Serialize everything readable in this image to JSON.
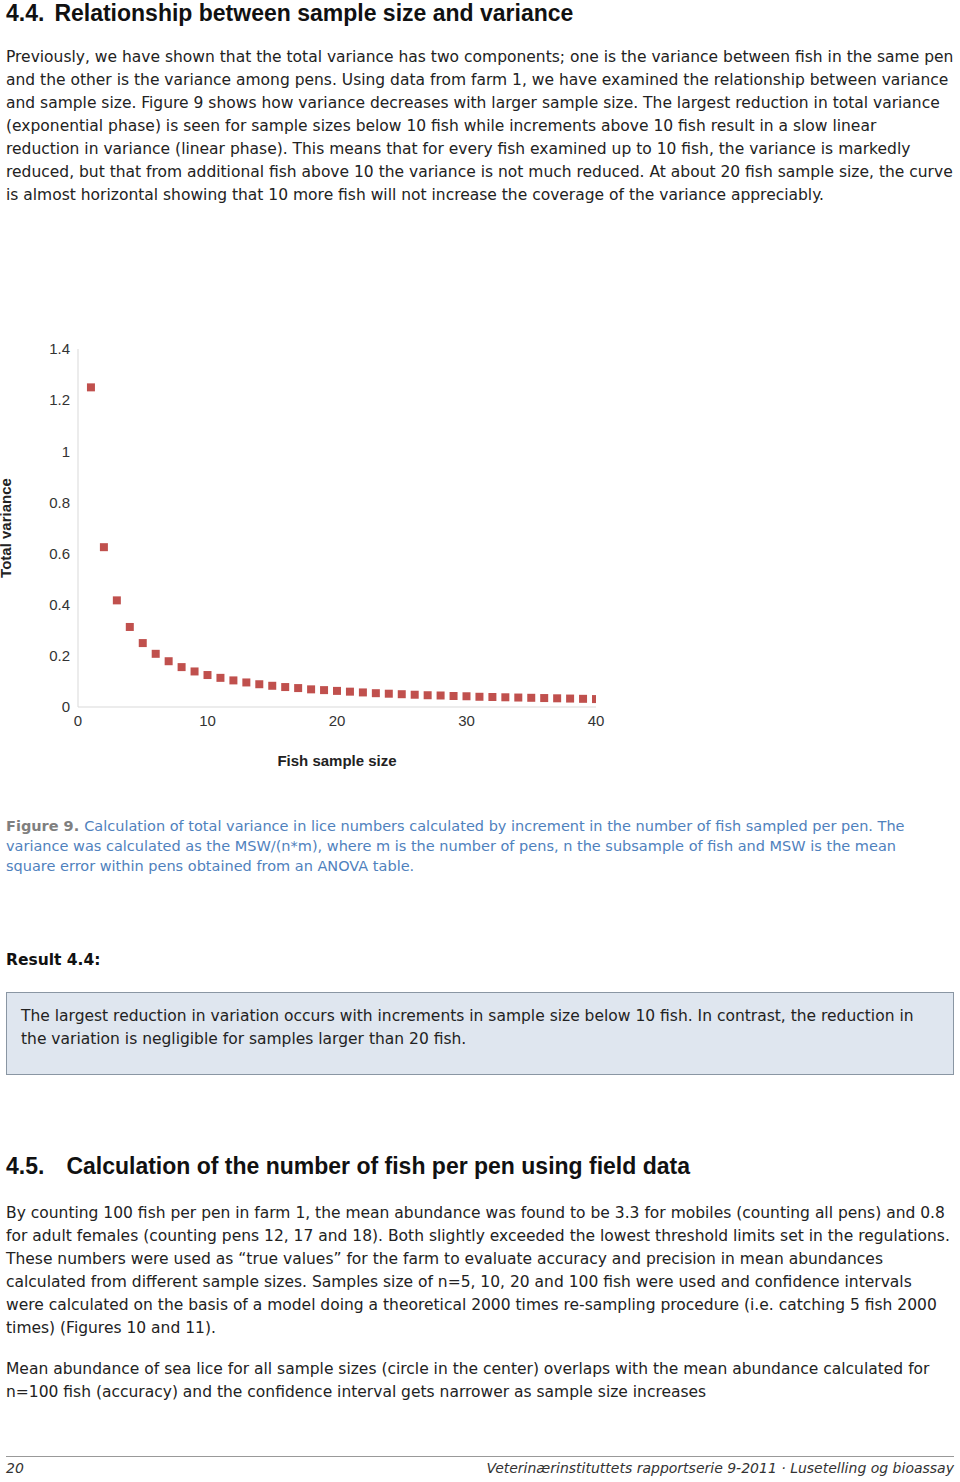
{
  "section_4_4": {
    "number": "4.4.",
    "title": "Relationship between sample size and variance",
    "paragraph": "Previously, we have shown that the total variance has two components; one is the variance between fish in the same pen and the other is the variance among pens. Using data from farm 1, we have examined the relationship between variance and sample size. Figure 9 shows how variance decreases with larger sample size. The largest reduction in total variance (exponential phase) is seen for sample sizes below 10 fish while increments above 10 fish result in a slow linear reduction in variance (linear phase). This means that for every fish examined up to 10 fish, the variance is markedly reduced, but that from additional fish above 10 the variance is not much reduced. At about 20 fish sample size, the curve is almost horizontal showing that 10 more fish will not increase the coverage of the variance appreciably."
  },
  "chart_data": {
    "type": "scatter",
    "xlabel": "Fish sample size",
    "ylabel": "Total variance",
    "x": [
      1,
      2,
      3,
      4,
      5,
      6,
      7,
      8,
      9,
      10,
      11,
      12,
      13,
      14,
      15,
      16,
      17,
      18,
      19,
      20,
      21,
      22,
      23,
      24,
      25,
      26,
      27,
      28,
      29,
      30,
      31,
      32,
      33,
      34,
      35,
      36,
      37,
      38,
      39,
      40
    ],
    "values": [
      1.25,
      0.625,
      0.417,
      0.313,
      0.25,
      0.208,
      0.179,
      0.156,
      0.139,
      0.125,
      0.114,
      0.104,
      0.096,
      0.089,
      0.083,
      0.078,
      0.074,
      0.069,
      0.066,
      0.063,
      0.06,
      0.057,
      0.054,
      0.052,
      0.05,
      0.048,
      0.046,
      0.045,
      0.043,
      0.042,
      0.04,
      0.039,
      0.038,
      0.037,
      0.036,
      0.035,
      0.034,
      0.033,
      0.032,
      0.031
    ],
    "color": "#c0504d",
    "marker": "square",
    "xlim": [
      0,
      40
    ],
    "ylim": [
      0,
      1.4
    ],
    "xticks": [
      0,
      10,
      20,
      30,
      40
    ],
    "yticks": [
      0,
      0.2,
      0.4,
      0.6,
      0.8,
      1,
      1.2,
      1.4
    ],
    "grid": false
  },
  "figure_caption": {
    "label": "Figure 9.",
    "text": "Calculation of total variance in lice numbers calculated by increment in the number of fish sampled per pen. The variance was calculated as the MSW/(n*m), where m is the number of pens, n the subsample of fish  and MSW is the mean square error within pens obtained from an ANOVA table."
  },
  "result": {
    "title": "Result 4.4:",
    "text": "The largest reduction in variation occurs with increments in sample size below 10 fish. In contrast, the reduction in the variation is negligible for samples larger than 20 fish."
  },
  "section_4_5": {
    "number": "4.5.",
    "title": "Calculation of the number of fish per pen using field data",
    "paragraphs": [
      "By counting 100 fish per pen in farm 1, the mean abundance was found to be 3.3 for mobiles (counting all pens) and 0.8 for adult females (counting pens 12, 17 and 18). Both slightly exceeded the lowest threshold limits set in the regulations. These numbers were used as “true values” for the farm to evaluate accuracy and precision in mean abundances calculated from different sample sizes. Samples size of n=5, 10, 20 and 100 fish were used and confidence intervals were calculated on the basis of a model doing a theoretical 2000 times re-sampling procedure (i.e. catching 5 fish 2000 times) (Figures 10 and 11).",
      "Mean abundance of sea lice for all sample sizes (circle in the center) overlaps with the mean abundance calculated for n=100 fish (accuracy) and the confidence interval gets narrower as sample size increases"
    ]
  },
  "footer": {
    "page": "20",
    "text": "Veterinærinstituttets rapportserie 9-2011 · Lusetelling og bioassay"
  }
}
